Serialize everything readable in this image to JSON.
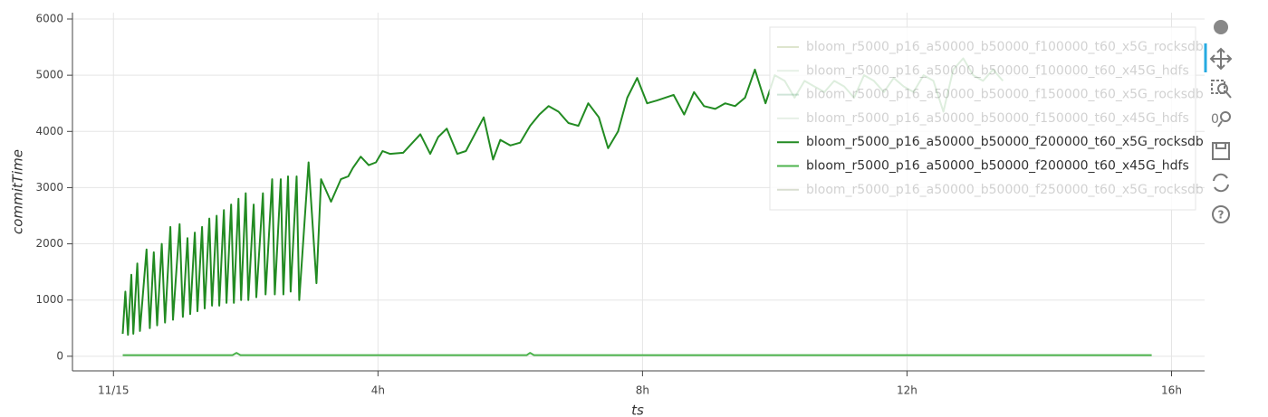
{
  "chart_data": {
    "type": "line",
    "xlabel": "ts",
    "ylabel": "commitTime",
    "xlim": [
      -0.62,
      16.5
    ],
    "ylim": [
      -260,
      6000
    ],
    "xticks": [
      {
        "value": 0,
        "label": "11/15"
      },
      {
        "value": 4,
        "label": "4h"
      },
      {
        "value": 8,
        "label": "8h"
      },
      {
        "value": 12,
        "label": "12h"
      },
      {
        "value": 16,
        "label": "16h"
      }
    ],
    "yticks": [
      0,
      1000,
      2000,
      3000,
      4000,
      5000,
      6000
    ],
    "grid": true,
    "legend": "top-right",
    "series": [
      {
        "name": "bloom_r5000_p16_a50000_b50000_f100000_t60_x5G_rocksdb",
        "color": "#6b8e23",
        "muted": true,
        "x": [],
        "values": []
      },
      {
        "name": "bloom_r5000_p16_a50000_b50000_f100000_t60_x45G_hdfs",
        "color": "#8fbc8f",
        "muted": true,
        "x": [],
        "values": []
      },
      {
        "name": "bloom_r5000_p16_a50000_b50000_f150000_t60_x5G_rocksdb",
        "color": "#2e8b57",
        "muted": true,
        "x": [],
        "values": []
      },
      {
        "name": "bloom_r5000_p16_a50000_b50000_f150000_t60_x45G_hdfs",
        "color": "#90c090",
        "muted": true,
        "x": [],
        "values": []
      },
      {
        "name": "bloom_r5000_p16_a50000_b50000_f200000_t60_x5G_rocksdb",
        "color": "#228b22",
        "muted": false,
        "x": [
          0.14,
          0.18,
          0.22,
          0.27,
          0.3,
          0.36,
          0.4,
          0.5,
          0.55,
          0.61,
          0.66,
          0.73,
          0.78,
          0.86,
          0.9,
          1.0,
          1.05,
          1.12,
          1.16,
          1.23,
          1.27,
          1.34,
          1.38,
          1.45,
          1.49,
          1.56,
          1.6,
          1.67,
          1.71,
          1.78,
          1.82,
          1.89,
          1.93,
          2.0,
          2.04,
          2.12,
          2.16,
          2.26,
          2.3,
          2.4,
          2.44,
          2.53,
          2.57,
          2.64,
          2.68,
          2.77,
          2.81,
          2.95,
          3.07,
          3.14,
          3.29,
          3.44,
          3.55,
          3.62,
          3.74,
          3.86,
          3.97,
          4.07,
          4.18,
          4.38,
          4.64,
          4.79,
          4.91,
          5.04,
          5.2,
          5.33,
          5.6,
          5.74,
          5.85,
          6.0,
          6.15,
          6.3,
          6.44,
          6.58,
          6.73,
          6.88,
          7.03,
          7.18,
          7.34,
          7.48,
          7.63,
          7.77,
          7.92,
          8.07,
          8.22,
          8.47,
          8.63,
          8.78,
          8.93,
          9.1,
          9.25,
          9.4,
          9.55,
          9.7,
          9.86,
          10.0,
          10.15,
          10.3,
          10.45,
          10.6,
          10.75,
          10.9,
          11.05,
          11.2,
          11.35,
          11.5,
          11.65,
          11.8,
          11.95,
          12.1,
          12.25,
          12.4,
          12.55,
          12.7,
          12.85,
          13.0,
          13.15,
          13.3,
          13.45
        ],
        "values": [
          400,
          1150,
          380,
          1450,
          400,
          1650,
          450,
          1900,
          500,
          1850,
          550,
          2000,
          600,
          2300,
          650,
          2350,
          700,
          2100,
          750,
          2200,
          800,
          2300,
          850,
          2450,
          900,
          2500,
          900,
          2600,
          950,
          2700,
          950,
          2800,
          1000,
          2900,
          1000,
          2700,
          1050,
          2900,
          1100,
          3150,
          1100,
          3150,
          1100,
          3200,
          1150,
          3200,
          1000,
          3450,
          1300,
          3150,
          2750,
          3150,
          3200,
          3350,
          3550,
          3400,
          3450,
          3650,
          3600,
          3620,
          3950,
          3600,
          3900,
          4050,
          3600,
          3650,
          4250,
          3500,
          3850,
          3750,
          3800,
          4100,
          4300,
          4450,
          4350,
          4150,
          4100,
          4500,
          4250,
          3700,
          4000,
          4600,
          4950,
          4500,
          4550,
          4650,
          4300,
          4700,
          4450,
          4400,
          4500,
          4450,
          4600,
          5100,
          4500,
          5000,
          4900,
          4600,
          4900,
          4800,
          4700,
          4900,
          4800,
          4600,
          5000,
          4900,
          4700,
          4950,
          4800,
          4700,
          5000,
          4900,
          4350,
          5100,
          5300,
          5000,
          4900,
          5100,
          4900
        ]
      },
      {
        "name": "bloom_r5000_p16_a50000_b50000_f200000_t60_x45G_hdfs",
        "color": "#4cb34c",
        "muted": false,
        "x": [
          0.14,
          1.8,
          1.86,
          1.92,
          6.25,
          6.3,
          6.36,
          15.7
        ],
        "values": [
          20,
          20,
          60,
          20,
          20,
          60,
          20,
          20
        ]
      },
      {
        "name": "bloom_r5000_p16_a50000_b50000_f250000_t60_x5G_rocksdb",
        "color": "#556b2f",
        "muted": true,
        "x": [],
        "values": []
      }
    ]
  }
}
